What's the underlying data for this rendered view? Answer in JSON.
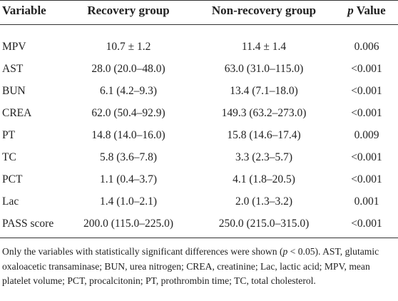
{
  "table": {
    "header": [
      "Variable",
      "Recovery group",
      "Non-recovery group",
      {
        "italic": "p",
        "rest": " Value"
      }
    ],
    "rows": [
      [
        "MPV",
        "10.7 ± 1.2",
        "11.4 ± 1.4",
        "0.006"
      ],
      [
        "AST",
        "28.0 (20.0–48.0)",
        "63.0 (31.0–115.0)",
        "<0.001"
      ],
      [
        "BUN",
        "6.1 (4.2–9.3)",
        "13.4 (7.1–18.0)",
        "<0.001"
      ],
      [
        "CREA",
        "62.0 (50.4–92.9)",
        "149.3 (63.2–273.0)",
        "<0.001"
      ],
      [
        "PT",
        "14.8 (14.0–16.0)",
        "15.8 (14.6–17.4)",
        "0.009"
      ],
      [
        "TC",
        "5.8 (3.6–7.8)",
        "3.3 (2.3–5.7)",
        "<0.001"
      ],
      [
        "PCT",
        "1.1 (0.4–3.7)",
        "4.1 (1.8–20.5)",
        "<0.001"
      ],
      [
        "Lac",
        "1.4 (1.0–2.1)",
        "2.0 (1.3–3.2)",
        "0.001"
      ],
      [
        "PASS score",
        "200.0 (115.0–225.0)",
        "250.0 (215.0–315.0)",
        "<0.001"
      ]
    ],
    "footnote": [
      "Only the variables with statistically significant differences were shown (",
      "p",
      " < 0.05). AST, glutamic oxaloacetic transaminase; BUN, urea nitrogen; CREA, creatinine; Lac, lactic acid; MPV, mean platelet volume; PCT, procalcitonin; PT, prothrombin time; TC, total cholesterol."
    ]
  }
}
